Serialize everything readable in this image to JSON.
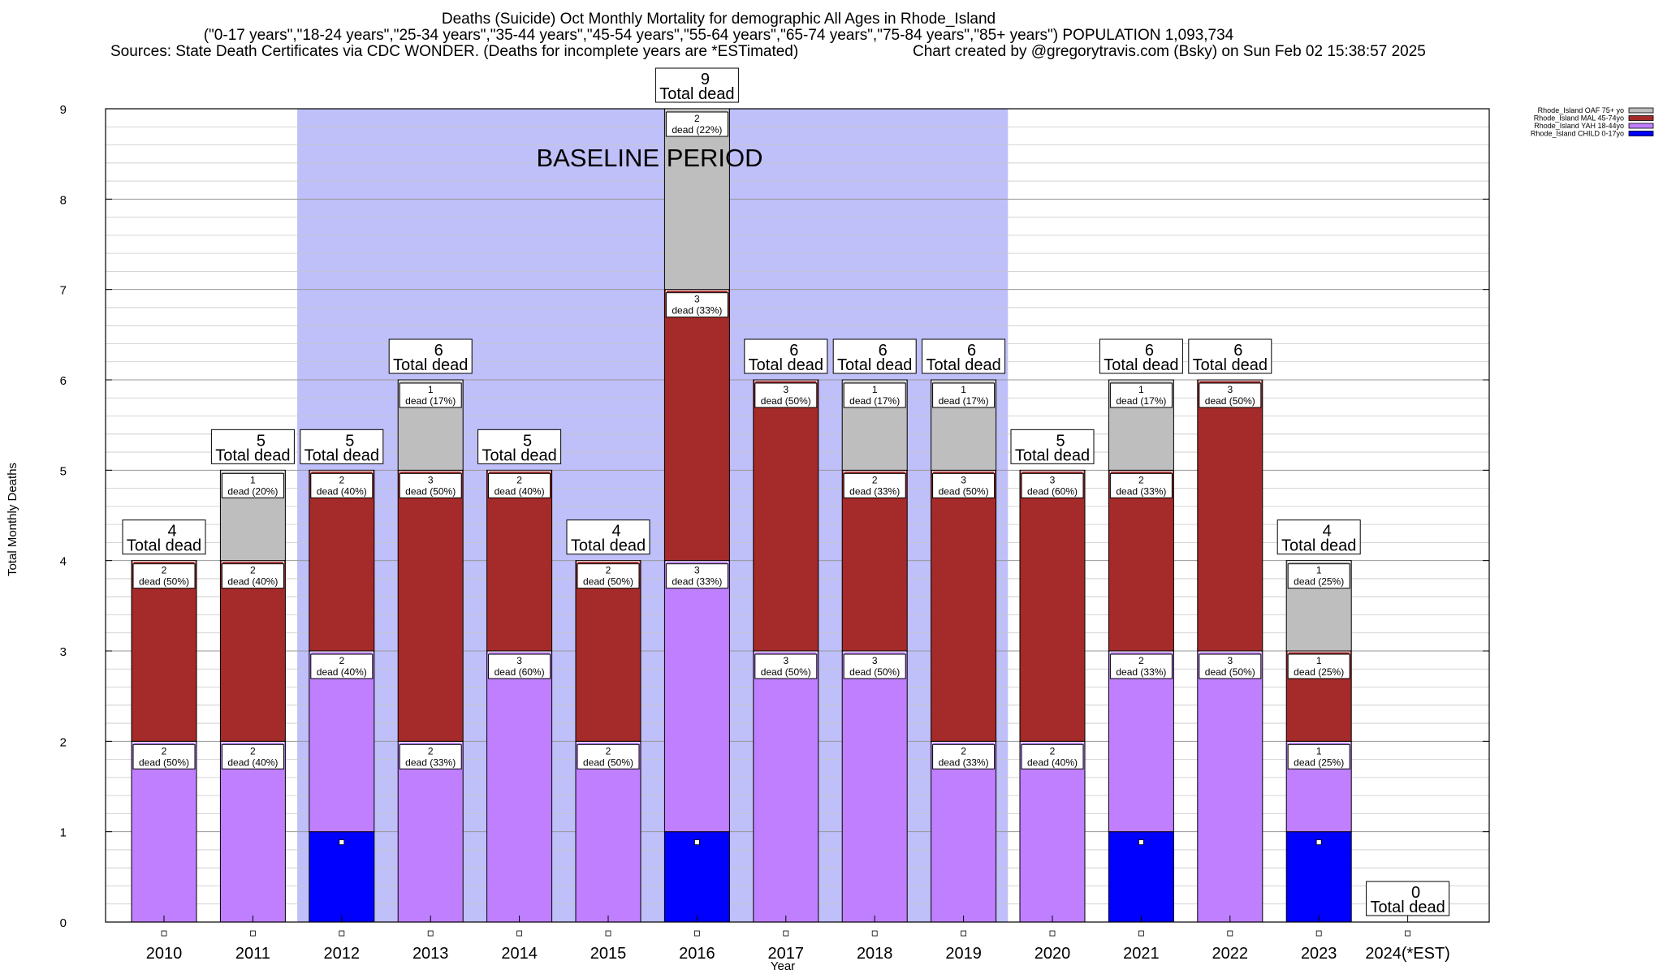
{
  "header": {
    "title": "Deaths (Suicide) Oct Monthly Mortality for demographic All Ages in Rhode_Island",
    "subtitle": "(\"0-17 years\",\"18-24 years\",\"25-34 years\",\"35-44 years\",\"45-54 years\",\"55-64 years\",\"65-74 years\",\"75-84 years\",\"85+ years\") POPULATION 1,093,734",
    "sources": "Sources: State Death Certificates via CDC WONDER. (Deaths for incomplete years are *ESTimated)",
    "credit": "Chart created by @gregorytravis.com (Bsky) on Sun Feb 02 15:38:57 2025"
  },
  "colors": {
    "child": "#0000ff",
    "yah": "#bf7fff",
    "mal": "#a52a2a",
    "oaf": "#bebebe",
    "baseline": "#bfbff9"
  },
  "chart_data": {
    "type": "bar",
    "stacked": true,
    "xlabel": "Year",
    "ylabel": "Total Monthly Deaths",
    "ylim": [
      0,
      9
    ],
    "yticks": [
      0,
      1,
      2,
      3,
      4,
      5,
      6,
      7,
      8,
      9
    ],
    "grid": true,
    "legend_position": "top-right",
    "baseline_label": "BASELINE PERIOD",
    "baseline_range": [
      "2012",
      "2019"
    ],
    "total_label": "Total dead",
    "categories": [
      "2010",
      "2011",
      "2012",
      "2013",
      "2014",
      "2015",
      "2016",
      "2017",
      "2018",
      "2019",
      "2020",
      "2021",
      "2022",
      "2023",
      "2024(*EST)"
    ],
    "totals": [
      4,
      5,
      5,
      6,
      5,
      4,
      9,
      6,
      6,
      6,
      5,
      6,
      6,
      4,
      0
    ],
    "series": [
      {
        "name": "Rhode_Island CHILD 0-17yo",
        "color_key": "child",
        "values": [
          0,
          0,
          1,
          0,
          0,
          0,
          1,
          0,
          0,
          0,
          0,
          1,
          0,
          1,
          0
        ],
        "labels": [
          "",
          "",
          "",
          "",
          "",
          "",
          "",
          "",
          "",
          "",
          "",
          "",
          "",
          "",
          ""
        ]
      },
      {
        "name": "Rhode_Island YAH 18-44yo",
        "color_key": "yah",
        "values": [
          2,
          2,
          2,
          2,
          3,
          2,
          3,
          3,
          3,
          2,
          2,
          2,
          3,
          1,
          0
        ],
        "labels": [
          "dead (50%)",
          "dead (40%)",
          "dead (40%)",
          "dead (33%)",
          "dead (60%)",
          "dead (50%)",
          "dead (33%)",
          "dead (50%)",
          "dead (50%)",
          "dead (33%)",
          "dead (40%)",
          "dead (33%)",
          "dead (50%)",
          "dead (25%)",
          ""
        ]
      },
      {
        "name": "Rhode_Island MAL 45-74yo",
        "color_key": "mal",
        "values": [
          2,
          2,
          2,
          3,
          2,
          2,
          3,
          3,
          2,
          3,
          3,
          2,
          3,
          1,
          0
        ],
        "labels": [
          "dead (50%)",
          "dead (40%)",
          "dead (40%)",
          "dead (50%)",
          "dead (40%)",
          "dead (50%)",
          "dead (33%)",
          "dead (50%)",
          "dead (33%)",
          "dead (50%)",
          "dead (60%)",
          "dead (33%)",
          "dead (50%)",
          "dead (25%)",
          ""
        ]
      },
      {
        "name": "Rhode_Island OAF 75+ yo",
        "color_key": "oaf",
        "values": [
          0,
          1,
          0,
          1,
          0,
          0,
          2,
          0,
          1,
          1,
          0,
          1,
          0,
          1,
          0
        ],
        "labels": [
          "",
          "dead (20%)",
          "",
          "dead (17%)",
          "",
          "",
          "dead (22%)",
          "",
          "dead (17%)",
          "dead (17%)",
          "",
          "dead (17%)",
          "",
          "dead (25%)",
          ""
        ]
      }
    ],
    "legend_order": [
      3,
      2,
      1,
      0
    ]
  }
}
